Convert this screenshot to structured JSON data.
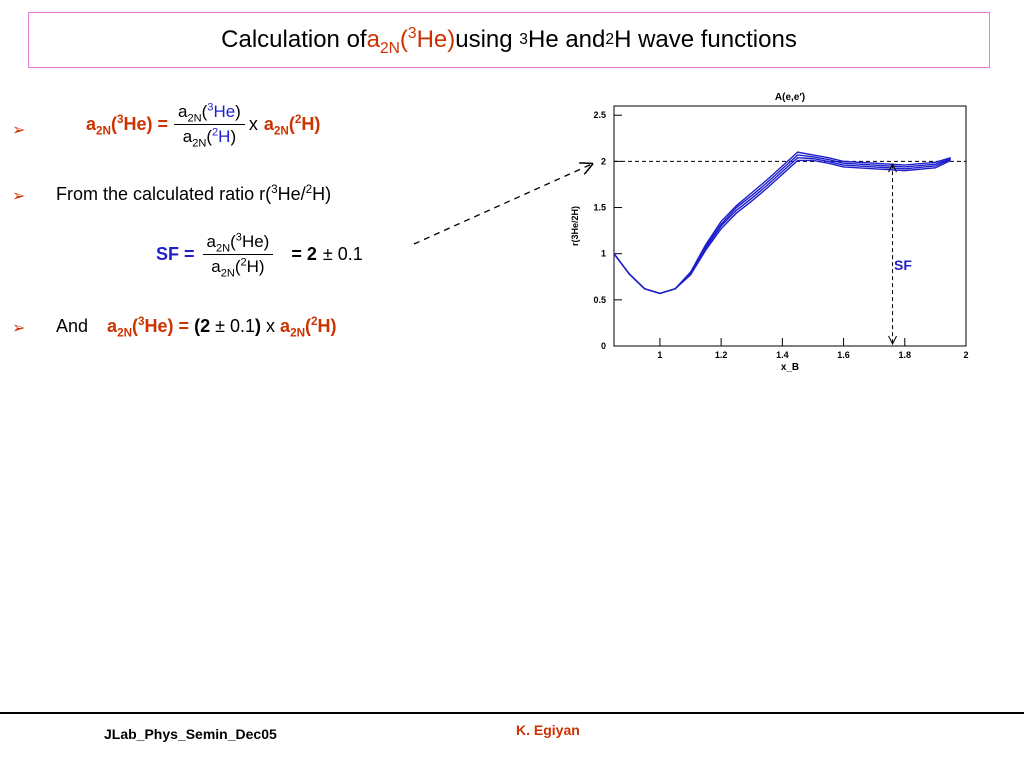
{
  "title": {
    "part1": "Calculation of ",
    "a": "a",
    "sub2N": "2N",
    "paren_open": "(",
    "sup3": "3",
    "He": "He)",
    "part2": " using ",
    "sup3b": "3",
    "He_and": "He and ",
    "sup2": "2",
    "rest": "H wave functions"
  },
  "line1": {
    "lhs_a": "a",
    "lhs_sub": "2N",
    "lhs_paren": "(",
    "lhs_sup": "3",
    "lhs_He": "He) =",
    "num_a": "a",
    "num_sub": "2N",
    "num_paren": "(",
    "num_sup": "3",
    "num_He": "He",
    "num_close": ")",
    "den_a": "a",
    "den_sub": "2N",
    "den_paren": "(",
    "den_sup": "2",
    "den_H": "H",
    "den_close": ")",
    "times": "x",
    "rhs_a": "a",
    "rhs_sub": "2N",
    "rhs_paren": "(",
    "rhs_sup": "2",
    "rhs_H": "H)"
  },
  "line2": {
    "text1": "From the calculated ratio r(",
    "sup3": "3",
    "text2": "He/",
    "sup2": "2",
    "text3": "H)"
  },
  "line3": {
    "sf": "SF =",
    "num_a": "a",
    "num_sub": "2N",
    "num_paren": "(",
    "num_sup": "3",
    "num_He": "He)",
    "den_a": "a",
    "den_sub": "2N",
    "den_paren": "(",
    "den_sup": "2",
    "den_H": "H)",
    "eq": "= 2",
    "pm": "± 0.1"
  },
  "line4": {
    "and": "And",
    "a": "a",
    "sub": "2N",
    "paren": "(",
    "sup3": "3",
    "He": "He) =",
    "open": "(2",
    "pm": "± 0.1",
    "close": ")",
    "times": "x",
    "a2": "a",
    "sub2": "2N",
    "paren2": "(",
    "sup2": "2",
    "H": "H)"
  },
  "bullet_symbol": "➢",
  "chart_data": {
    "type": "line",
    "title": "A(e,e′)",
    "xlabel": "x_B",
    "ylabel": "r(3He/2H)",
    "xlim": [
      0.85,
      2.0
    ],
    "ylim": [
      0,
      2.6
    ],
    "xticks": [
      "1",
      "1.2",
      "1.4",
      "1.6",
      "1.8",
      "2"
    ],
    "yticks": [
      "0",
      "0.5",
      "1",
      "1.5",
      "2",
      "2.5"
    ],
    "reference_line_y": 2,
    "sf_marker_x": 1.76,
    "sf_label": "SF",
    "series": [
      {
        "x": [
          0.85,
          0.9,
          0.95,
          1.0,
          1.05,
          1.1,
          1.15,
          1.2,
          1.25,
          1.3,
          1.35,
          1.4,
          1.45,
          1.5,
          1.55,
          1.6,
          1.7,
          1.8,
          1.9,
          1.95
        ],
        "y": [
          1.0,
          0.78,
          0.62,
          0.57,
          0.62,
          0.8,
          1.1,
          1.35,
          1.52,
          1.66,
          1.8,
          1.95,
          2.1,
          2.07,
          2.04,
          2.0,
          1.98,
          1.96,
          1.99,
          2.04
        ]
      },
      {
        "x": [
          0.85,
          0.9,
          0.95,
          1.0,
          1.05,
          1.1,
          1.15,
          1.2,
          1.25,
          1.3,
          1.35,
          1.4,
          1.45,
          1.5,
          1.55,
          1.6,
          1.7,
          1.8,
          1.9,
          1.95
        ],
        "y": [
          1.0,
          0.78,
          0.62,
          0.57,
          0.62,
          0.79,
          1.08,
          1.32,
          1.5,
          1.63,
          1.77,
          1.92,
          2.07,
          2.05,
          2.02,
          1.98,
          1.96,
          1.94,
          1.97,
          2.03
        ]
      },
      {
        "x": [
          0.85,
          0.9,
          0.95,
          1.0,
          1.05,
          1.1,
          1.15,
          1.2,
          1.25,
          1.3,
          1.35,
          1.4,
          1.45,
          1.5,
          1.55,
          1.6,
          1.7,
          1.8,
          1.9,
          1.95
        ],
        "y": [
          1.0,
          0.78,
          0.62,
          0.57,
          0.62,
          0.78,
          1.06,
          1.3,
          1.47,
          1.6,
          1.74,
          1.89,
          2.04,
          2.03,
          2.0,
          1.96,
          1.94,
          1.92,
          1.95,
          2.02
        ]
      },
      {
        "x": [
          0.85,
          0.9,
          0.95,
          1.0,
          1.05,
          1.1,
          1.15,
          1.2,
          1.25,
          1.3,
          1.35,
          1.4,
          1.45,
          1.5,
          1.55,
          1.6,
          1.7,
          1.8,
          1.9,
          1.95
        ],
        "y": [
          1.0,
          0.78,
          0.62,
          0.57,
          0.62,
          0.77,
          1.04,
          1.27,
          1.44,
          1.57,
          1.71,
          1.86,
          2.01,
          2.01,
          1.98,
          1.94,
          1.92,
          1.9,
          1.93,
          2.01
        ]
      }
    ],
    "line_color": "#1f1fcc"
  },
  "footer": {
    "left": "JLab_Phys_Semin_Dec05",
    "right": "K. Egiyan"
  }
}
